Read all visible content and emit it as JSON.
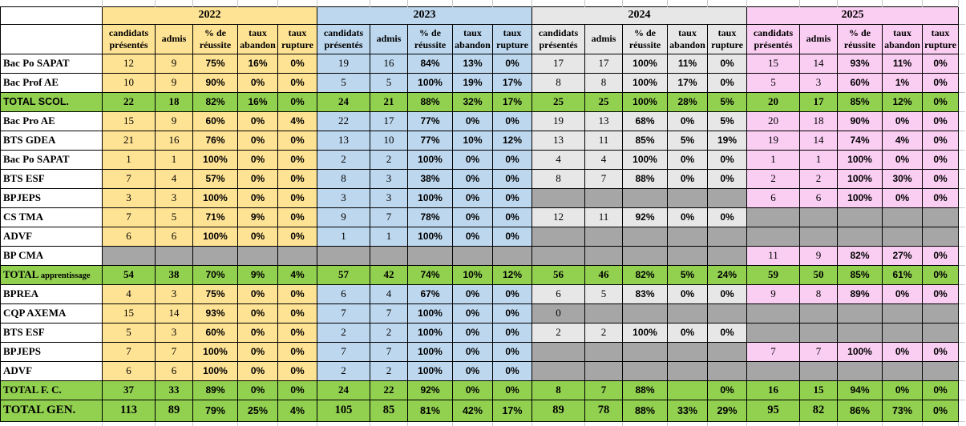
{
  "colors": {
    "year_2022_bg": "#FFE394",
    "year_2023_bg": "#BDD7EE",
    "year_2024_bg": "#E8E7E7",
    "year_2025_bg": "#FACDF2",
    "total_row_bg": "#92D050",
    "empty_cell_bg": "#A6A6A6",
    "grid_line": "#C6C6C6",
    "cell_border": "#000000",
    "flag_green": "#1E5C1E"
  },
  "years": [
    {
      "label": "2022",
      "bg": "#FFE394"
    },
    {
      "label": "2023",
      "bg": "#BDD7EE"
    },
    {
      "label": "2024",
      "bg": "#E8E7E7"
    },
    {
      "label": "2025",
      "bg": "#FACDF2"
    }
  ],
  "subheaders": [
    "candidats présentés",
    "admis",
    "% de réussite",
    "taux abandon",
    "taux rupture"
  ],
  "rows": [
    {
      "label": "Bac Po SAPAT",
      "total": false,
      "years": [
        [
          "12",
          "9",
          "75%",
          "16%",
          "0%"
        ],
        [
          "19",
          "16",
          "84%",
          "13%",
          "0%"
        ],
        [
          "17",
          "17",
          "100%",
          "11%",
          "0%"
        ],
        [
          "15",
          "14",
          "93%",
          "11%",
          "0%"
        ]
      ]
    },
    {
      "label": "Bac Prof AE",
      "total": false,
      "years": [
        [
          "10",
          "9",
          "90%",
          "0%",
          "0%"
        ],
        [
          "5",
          "5",
          "100%",
          "19%",
          "17%"
        ],
        [
          "8",
          "8",
          "100%",
          "17%",
          "0%"
        ],
        [
          "5",
          "3",
          "60%",
          "1%",
          "0%"
        ]
      ]
    },
    {
      "label": "TOTAL SCOL.",
      "total": true,
      "style": "sans",
      "years": [
        [
          "22",
          "18",
          "82%",
          "16%",
          "0%"
        ],
        [
          "24",
          "21",
          "88%",
          "32%",
          "17%"
        ],
        [
          "25",
          "25",
          "100%",
          "28%",
          "5%"
        ],
        [
          "20",
          "17",
          "85%",
          "12%",
          "0%"
        ]
      ]
    },
    {
      "label": "Bac Pro AE",
      "total": false,
      "years": [
        [
          "15",
          "9",
          "60%",
          "0%",
          "4%"
        ],
        [
          "22",
          "17",
          "77%",
          "0%",
          "0%"
        ],
        [
          "19",
          "13",
          "68%",
          "0%",
          "5%"
        ],
        [
          "20",
          "18",
          "90%",
          "0%",
          "0%"
        ]
      ]
    },
    {
      "label": "BTS GDEA",
      "total": false,
      "years": [
        [
          "21",
          "16",
          "76%",
          "0%",
          "0%"
        ],
        [
          "13",
          "10",
          "77%",
          "10%",
          "12%"
        ],
        [
          "13",
          "11",
          "85%",
          "5%",
          "19%"
        ],
        [
          "19",
          "14",
          "74%",
          "4%",
          "0%"
        ]
      ]
    },
    {
      "label": "Bac Po SAPAT",
      "total": false,
      "years": [
        [
          "1",
          "1",
          "100%",
          "0%",
          "0%"
        ],
        [
          "2",
          "2",
          "100%",
          "0%",
          "0%"
        ],
        [
          "4",
          "4",
          "100%",
          "0%",
          "0%"
        ],
        [
          "1",
          "1",
          "100%",
          "0%",
          "0%"
        ]
      ]
    },
    {
      "label": "BTS ESF",
      "total": false,
      "years": [
        [
          "7",
          "4",
          "57%",
          "0%",
          "0%"
        ],
        [
          "8",
          "3",
          "38%",
          "0%",
          "0%"
        ],
        [
          "8",
          "7",
          "88%",
          "0%",
          "0%"
        ],
        [
          "2",
          "2",
          "100%",
          "30%",
          "0%"
        ]
      ]
    },
    {
      "label": "BPJEPS",
      "total": false,
      "years": [
        [
          "3",
          "3",
          "100%",
          "0%",
          "0%"
        ],
        [
          "3",
          "3",
          "100%",
          "0%",
          "0%"
        ],
        [
          null,
          null,
          null,
          null,
          null
        ],
        [
          "6",
          "6",
          "100%",
          "0%",
          "0%"
        ]
      ]
    },
    {
      "label": "CS TMA",
      "total": false,
      "years": [
        [
          "7",
          "5",
          "71%",
          "9%",
          "0%"
        ],
        [
          "9",
          "7",
          "78%",
          "0%",
          "0%"
        ],
        [
          "12",
          "11",
          "92%",
          "0%",
          "0%"
        ],
        [
          null,
          null,
          null,
          null,
          null
        ]
      ]
    },
    {
      "label": "ADVF",
      "total": false,
      "years": [
        [
          "6",
          "6",
          "100%",
          "0%",
          "0%"
        ],
        [
          "1",
          "1",
          "100%",
          "0%",
          "0%"
        ],
        [
          null,
          null,
          null,
          null,
          null
        ],
        [
          null,
          null,
          null,
          null,
          null
        ]
      ]
    },
    {
      "label": "BP CMA",
      "total": false,
      "years": [
        [
          null,
          null,
          null,
          null,
          null
        ],
        [
          null,
          null,
          null,
          null,
          null
        ],
        [
          null,
          null,
          null,
          null,
          null
        ],
        [
          "11",
          "9",
          "82%",
          "27%",
          "0%"
        ]
      ]
    },
    {
      "label": "TOTAL",
      "label_suffix": "apprentissage",
      "total": true,
      "marks": [
        [
          0,
          0
        ],
        [
          0,
          1
        ],
        [
          1,
          0
        ],
        [
          1,
          1
        ]
      ],
      "years": [
        [
          "54",
          "38",
          "70%",
          "9%",
          "4%"
        ],
        [
          "57",
          "42",
          "74%",
          "10%",
          "12%"
        ],
        [
          "56",
          "46",
          "82%",
          "5%",
          "24%"
        ],
        [
          "59",
          "50",
          "85%",
          "61%",
          "0%"
        ]
      ]
    },
    {
      "label": "BPREA",
      "total": false,
      "years": [
        [
          "4",
          "3",
          "75%",
          "0%",
          "0%"
        ],
        [
          "6",
          "4",
          "67%",
          "0%",
          "0%"
        ],
        [
          "6",
          "5",
          "83%",
          "0%",
          "0%"
        ],
        [
          "9",
          "8",
          "89%",
          "0%",
          "0%"
        ]
      ]
    },
    {
      "label": "CQP AXEMA",
      "total": false,
      "gray_values": [
        [
          2,
          0
        ]
      ],
      "years": [
        [
          "15",
          "14",
          "93%",
          "0%",
          "0%"
        ],
        [
          "7",
          "7",
          "100%",
          "0%",
          "0%"
        ],
        [
          "0",
          null,
          null,
          null,
          null
        ],
        [
          null,
          null,
          null,
          null,
          null
        ]
      ]
    },
    {
      "label": "BTS ESF",
      "total": false,
      "years": [
        [
          "5",
          "3",
          "60%",
          "0%",
          "0%"
        ],
        [
          "2",
          "2",
          "100%",
          "0%",
          "0%"
        ],
        [
          "2",
          "2",
          "100%",
          "0%",
          "0%"
        ],
        [
          null,
          null,
          null,
          null,
          null
        ]
      ]
    },
    {
      "label": "BPJEPS",
      "total": false,
      "years": [
        [
          "7",
          "7",
          "100%",
          "0%",
          "0%"
        ],
        [
          "7",
          "7",
          "100%",
          "0%",
          "0%"
        ],
        [
          null,
          null,
          null,
          null,
          null
        ],
        [
          "7",
          "7",
          "100%",
          "0%",
          "0%"
        ]
      ]
    },
    {
      "label": "ADVF",
      "total": false,
      "years": [
        [
          "6",
          "6",
          "100%",
          "0%",
          "0%"
        ],
        [
          "2",
          "2",
          "100%",
          "0%",
          "0%"
        ],
        [
          null,
          null,
          null,
          null,
          null
        ],
        [
          null,
          null,
          null,
          null,
          null
        ]
      ]
    },
    {
      "label": "TOTAL F. C.",
      "total": true,
      "years": [
        [
          "37",
          "33",
          "89%",
          "0%",
          "0%"
        ],
        [
          "24",
          "22",
          "92%",
          "0%",
          "0%"
        ],
        [
          "8",
          "7",
          "88%",
          "",
          "0%"
        ],
        [
          "16",
          "15",
          "94%",
          "0%",
          "0%"
        ]
      ]
    },
    {
      "label": "TOTAL GEN.",
      "total": true,
      "style": "big",
      "years": [
        [
          "113",
          "89",
          "79%",
          "25%",
          "4%"
        ],
        [
          "105",
          "85",
          "81%",
          "42%",
          "17%"
        ],
        [
          "89",
          "78",
          "88%",
          "33%",
          "29%"
        ],
        [
          "95",
          "82",
          "86%",
          "73%",
          "0%"
        ]
      ]
    }
  ]
}
